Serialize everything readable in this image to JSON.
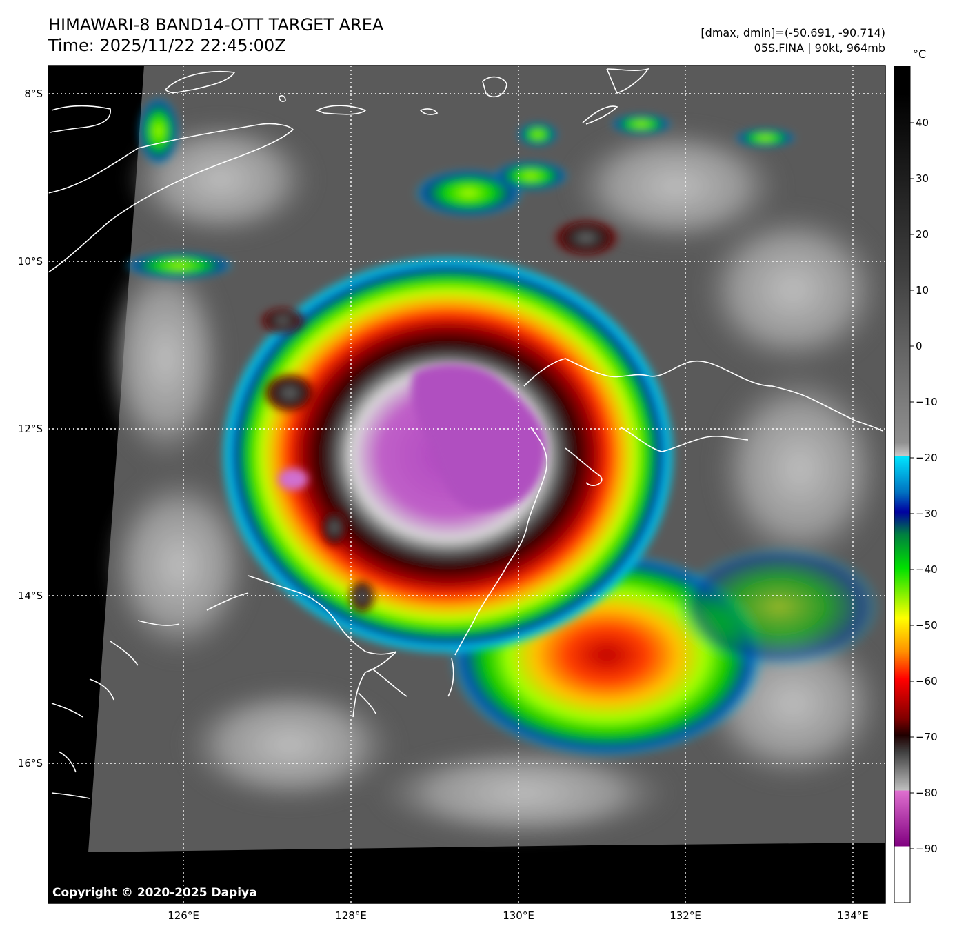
{
  "header": {
    "title_line1": "HIMAWARI-8 BAND14-OTT TARGET AREA",
    "title_line2": "Time: 2025/11/22 22:45:00Z",
    "meta_line1": "[dmax, dmin]=(-50.691, -90.714)",
    "meta_line2": "05S.FINA | 90kt, 964mb"
  },
  "map": {
    "lat_labels": [
      "8°S",
      "10°S",
      "12°S",
      "14°S",
      "16°S"
    ],
    "lon_labels": [
      "126°E",
      "128°E",
      "130°E",
      "132°E",
      "134°E"
    ],
    "copyright": "Copyright © 2020-2025 Dapiya",
    "storm_name": "05S.FINA",
    "intensity_kt": 90,
    "pressure_mb": 964
  },
  "colorbar": {
    "unit": "°C",
    "ticks": [
      "40",
      "30",
      "20",
      "10",
      "0",
      "−10",
      "−20",
      "−30",
      "−40",
      "−50",
      "−60",
      "−70",
      "−80",
      "−90"
    ],
    "range": [
      -100,
      50
    ],
    "colors": {
      "cyan": "#00e5ff",
      "blue": "#0000a0",
      "green": "#00e000",
      "yellow": "#ffff00",
      "red": "#e00000",
      "darkred": "#500000",
      "magenta": "#d050d0",
      "purple": "#800080"
    }
  }
}
